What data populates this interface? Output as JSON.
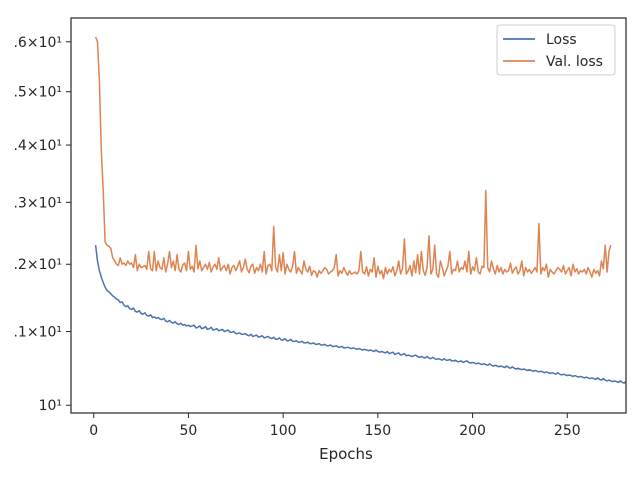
{
  "chart_data": {
    "type": "line",
    "xlabel": "Epochs",
    "ylabel": "",
    "xlim": [
      -12,
      281
    ],
    "ylim": [
      9.9,
      16.5
    ],
    "yscale": "log",
    "grid": false,
    "legend_position": "top-right",
    "x_ticks": [
      0,
      50,
      100,
      150,
      200,
      250
    ],
    "y_ticks": [
      {
        "value": 10,
        "label": "10¹"
      },
      {
        "value": 11,
        "label": ".1×10¹"
      },
      {
        "value": 12,
        "label": ".2×10¹"
      },
      {
        "value": 13,
        "label": ".3×10¹"
      },
      {
        "value": 14,
        "label": ".4×10¹"
      },
      {
        "value": 15,
        "label": ".5×10¹"
      },
      {
        "value": 16,
        "label": ".6×10¹"
      }
    ],
    "series": [
      {
        "name": "Loss",
        "color": "#4c72b0",
        "x_start": 1,
        "values": [
          12.3,
          12.05,
          11.9,
          11.8,
          11.72,
          11.65,
          11.6,
          11.58,
          11.55,
          11.52,
          11.5,
          11.47,
          11.46,
          11.42,
          11.43,
          11.38,
          11.36,
          11.37,
          11.33,
          11.32,
          11.34,
          11.29,
          11.28,
          11.3,
          11.26,
          11.25,
          11.27,
          11.23,
          11.22,
          11.24,
          11.2,
          11.21,
          11.19,
          11.2,
          11.18,
          11.17,
          11.19,
          11.15,
          11.14,
          11.16,
          11.13,
          11.12,
          11.14,
          11.11,
          11.1,
          11.12,
          11.09,
          11.1,
          11.08,
          11.09,
          11.07,
          11.08,
          11.09,
          11.05,
          11.06,
          11.08,
          11.04,
          11.05,
          11.07,
          11.03,
          11.04,
          11.06,
          11.02,
          11.03,
          11.04,
          11.01,
          11.02,
          11.03,
          11.0,
          11.01,
          11.02,
          10.99,
          10.99,
          11.0,
          10.97,
          10.97,
          10.98,
          10.96,
          10.96,
          10.97,
          10.95,
          10.94,
          10.96,
          10.93,
          10.94,
          10.95,
          10.92,
          10.93,
          10.94,
          10.91,
          10.92,
          10.93,
          10.91,
          10.9,
          10.92,
          10.89,
          10.89,
          10.91,
          10.88,
          10.88,
          10.9,
          10.87,
          10.87,
          10.89,
          10.86,
          10.86,
          10.87,
          10.85,
          10.85,
          10.86,
          10.84,
          10.84,
          10.85,
          10.83,
          10.83,
          10.84,
          10.82,
          10.82,
          10.83,
          10.81,
          10.81,
          10.82,
          10.8,
          10.8,
          10.81,
          10.79,
          10.79,
          10.8,
          10.78,
          10.78,
          10.79,
          10.77,
          10.77,
          10.78,
          10.77,
          10.76,
          10.77,
          10.76,
          10.75,
          10.76,
          10.75,
          10.74,
          10.75,
          10.74,
          10.73,
          10.74,
          10.73,
          10.72,
          10.74,
          10.72,
          10.71,
          10.72,
          10.71,
          10.7,
          10.72,
          10.69,
          10.7,
          10.71,
          10.68,
          10.69,
          10.7,
          10.67,
          10.68,
          10.69,
          10.66,
          10.67,
          10.66,
          10.65,
          10.66,
          10.67,
          10.65,
          10.64,
          10.65,
          10.64,
          10.63,
          10.65,
          10.63,
          10.62,
          10.64,
          10.62,
          10.61,
          10.62,
          10.61,
          10.6,
          10.62,
          10.6,
          10.6,
          10.61,
          10.59,
          10.59,
          10.6,
          10.58,
          10.58,
          10.59,
          10.57,
          10.58,
          10.59,
          10.57,
          10.56,
          10.57,
          10.56,
          10.55,
          10.56,
          10.55,
          10.54,
          10.55,
          10.54,
          10.53,
          10.55,
          10.53,
          10.52,
          10.53,
          10.52,
          10.51,
          10.52,
          10.51,
          10.5,
          10.52,
          10.5,
          10.49,
          10.51,
          10.49,
          10.48,
          10.49,
          10.48,
          10.47,
          10.48,
          10.47,
          10.46,
          10.47,
          10.46,
          10.45,
          10.46,
          10.45,
          10.44,
          10.45,
          10.44,
          10.43,
          10.44,
          10.43,
          10.42,
          10.43,
          10.42,
          10.41,
          10.43,
          10.41,
          10.4,
          10.41,
          10.4,
          10.39,
          10.4,
          10.39,
          10.38,
          10.39,
          10.38,
          10.37,
          10.38,
          10.37,
          10.36,
          10.37,
          10.36,
          10.35,
          10.36,
          10.35,
          10.34,
          10.36,
          10.34,
          10.33,
          10.35,
          10.33,
          10.32,
          10.33,
          10.32,
          10.31,
          10.32,
          10.31,
          10.3,
          10.32,
          10.3,
          10.29,
          10.31
        ]
      },
      {
        "name": "Val. loss",
        "color": "#dd8452",
        "x_start": 1,
        "values": [
          16.1,
          16.0,
          15.2,
          13.9,
          13.2,
          12.35,
          12.3,
          12.28,
          12.25,
          12.1,
          12.05,
          12.0,
          11.98,
          12.1,
          12.0,
          12.02,
          11.98,
          12.05,
          12.0,
          12.02,
          11.95,
          12.15,
          11.9,
          12.0,
          11.95,
          11.96,
          11.98,
          11.92,
          12.2,
          11.93,
          11.9,
          12.2,
          11.9,
          12.05,
          11.95,
          11.92,
          12.1,
          11.88,
          12.0,
          12.2,
          11.95,
          12.05,
          11.9,
          12.15,
          11.92,
          11.88,
          11.99,
          12.02,
          11.9,
          12.2,
          11.92,
          11.97,
          11.88,
          12.3,
          11.93,
          12.05,
          11.9,
          11.95,
          12.0,
          11.92,
          12.03,
          11.88,
          11.96,
          12.0,
          11.92,
          12.1,
          11.9,
          11.95,
          11.98,
          11.9,
          12.0,
          11.85,
          11.95,
          11.98,
          11.9,
          11.97,
          12.05,
          11.88,
          11.95,
          12.08,
          11.92,
          11.87,
          11.97,
          12.0,
          11.86,
          11.95,
          11.9,
          12.0,
          11.88,
          12.2,
          11.85,
          11.98,
          12.0,
          11.9,
          12.6,
          11.95,
          11.88,
          12.15,
          11.9,
          12.18,
          11.85,
          12.0,
          11.92,
          11.88,
          11.97,
          12.2,
          11.86,
          11.95,
          11.9,
          11.85,
          12.05,
          11.92,
          11.88,
          11.97,
          11.83,
          11.9,
          11.88,
          11.8,
          11.9,
          11.86,
          11.9,
          11.95,
          11.92,
          11.85,
          11.88,
          11.9,
          11.95,
          12.15,
          11.82,
          11.9,
          11.86,
          11.95,
          11.88,
          11.83,
          11.9,
          11.85,
          11.86,
          11.88,
          11.85,
          11.9,
          12.2,
          11.88,
          11.85,
          11.96,
          11.82,
          11.92,
          11.88,
          12.1,
          11.8,
          11.97,
          11.85,
          11.9,
          11.78,
          11.95,
          11.85,
          11.92,
          11.88,
          11.96,
          11.82,
          11.9,
          12.05,
          11.85,
          11.93,
          12.4,
          11.85,
          11.9,
          11.98,
          11.82,
          12.05,
          11.87,
          12.15,
          11.85,
          12.2,
          11.9,
          11.83,
          11.96,
          12.45,
          11.85,
          11.92,
          12.3,
          11.85,
          11.8,
          12.05,
          11.95,
          11.82,
          11.9,
          11.97,
          12.2,
          11.85,
          11.92,
          11.9,
          12.05,
          11.88,
          11.95,
          11.92,
          12.05,
          11.88,
          12.2,
          11.85,
          11.96,
          11.9,
          12.1,
          11.88,
          11.85,
          11.97,
          11.95,
          13.2,
          11.95,
          11.88,
          12.05,
          11.93,
          11.85,
          11.98,
          11.88,
          11.95,
          11.85,
          11.92,
          11.88,
          11.9,
          12.02,
          11.86,
          11.92,
          11.96,
          11.85,
          11.9,
          12.05,
          11.82,
          11.95,
          11.88,
          11.92,
          11.86,
          11.9,
          11.95,
          11.88,
          12.65,
          11.85,
          11.95,
          11.9,
          12.0,
          11.8,
          11.92,
          11.88,
          11.85,
          11.9,
          11.95,
          11.92,
          11.88,
          11.98,
          11.85,
          11.9,
          11.95,
          11.82,
          12.0,
          11.88,
          11.93,
          11.85,
          11.9,
          11.88,
          11.92,
          11.85,
          11.95,
          11.88,
          11.8,
          11.92,
          11.86,
          11.9,
          11.82,
          12.05,
          11.93,
          12.3,
          11.88,
          12.2,
          12.3
        ]
      }
    ]
  }
}
